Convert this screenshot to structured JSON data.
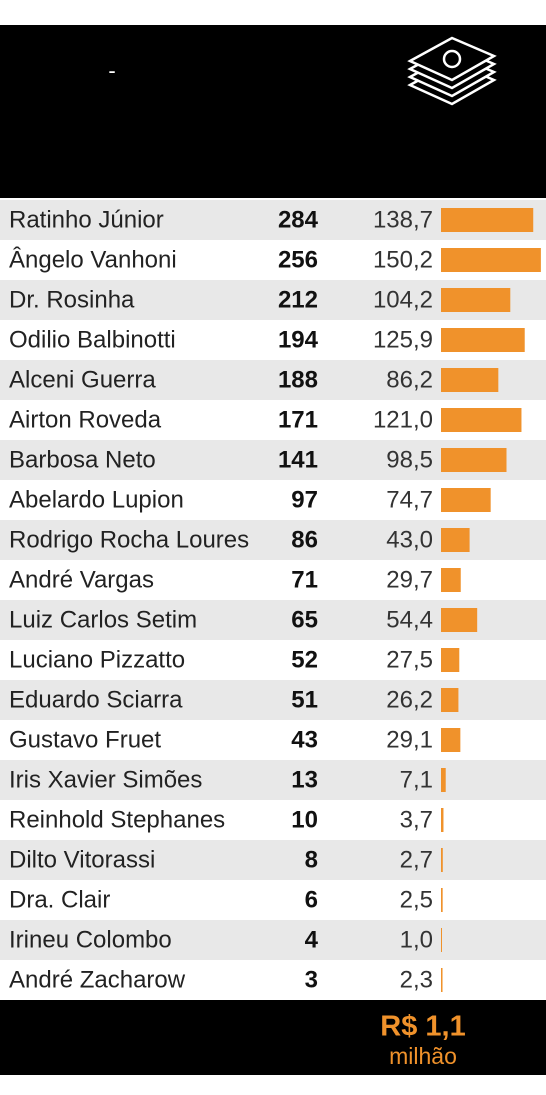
{
  "header": {
    "dash": "-"
  },
  "chart_data": {
    "type": "bar",
    "orientation": "horizontal",
    "color": "#f0922b",
    "categories": [
      "Ratinho Júnior",
      "Ângelo Vanhoni",
      "Dr. Rosinha",
      "Odilio Balbinotti",
      "Alceni Guerra",
      "Airton Roveda",
      "Barbosa Neto",
      "Abelardo Lupion",
      "Rodrigo Rocha Loures",
      "André Vargas",
      "Luiz Carlos Setim",
      "Luciano Pizzatto",
      "Eduardo Sciarra",
      "Gustavo Fruet",
      "Iris Xavier Simões",
      "Reinhold Stephanes",
      "Dilto Vitorassi",
      "Dra. Clair",
      "Irineu Colombo",
      "André Zacharow"
    ],
    "counts": [
      284,
      256,
      212,
      194,
      188,
      171,
      141,
      97,
      86,
      71,
      65,
      52,
      51,
      43,
      13,
      10,
      8,
      6,
      4,
      3
    ],
    "values": [
      138.7,
      150.2,
      104.2,
      125.9,
      86.2,
      121.0,
      98.5,
      74.7,
      43.0,
      29.7,
      54.4,
      27.5,
      26.2,
      29.1,
      7.1,
      3.7,
      2.7,
      2.5,
      1.0,
      2.3
    ],
    "value_labels": [
      "138,7",
      "150,2",
      "104,2",
      "125,9",
      "86,2",
      "121,0",
      "98,5",
      "74,7",
      "43,0",
      "29,7",
      "54,4",
      "27,5",
      "26,2",
      "29,1",
      "7,1",
      "3,7",
      "2,7",
      "2,5",
      "1,0",
      "2,3"
    ]
  },
  "footer": {
    "amount": "R$ 1,1",
    "unit": "milhão"
  }
}
